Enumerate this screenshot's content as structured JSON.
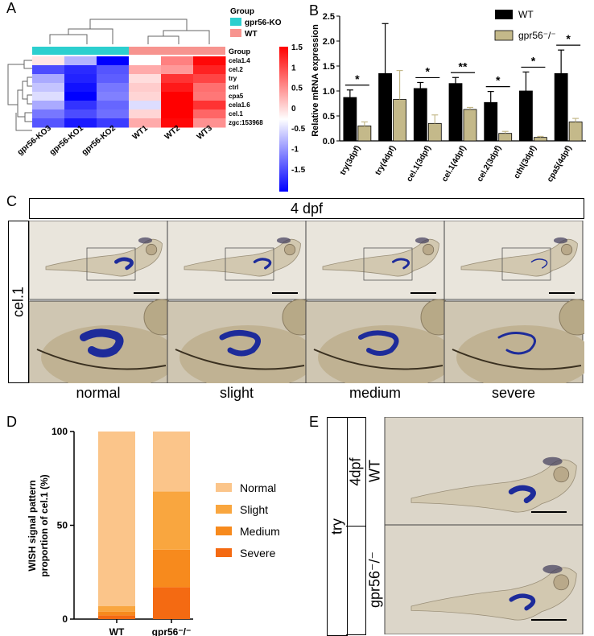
{
  "panels": {
    "A": "A",
    "B": "B",
    "C": "C",
    "D": "D",
    "E": "E"
  },
  "heatmap": {
    "legend_title_top": "Group",
    "legend_items": [
      {
        "label": "gpr56-KO",
        "color": "#2ccfcf"
      },
      {
        "label": "WT",
        "color": "#f7948f"
      }
    ],
    "group_label": "Group",
    "rows": [
      "cela1.4",
      "cel.2",
      "try",
      "ctrl",
      "cpa5",
      "cela1.6",
      "cel.1",
      "zgc:153968"
    ],
    "cols": [
      "gpr56-KO3",
      "gpr56-KO1",
      "gpr56-KO2",
      "WT1",
      "WT2",
      "WT3"
    ],
    "values": [
      [
        0.15,
        -0.45,
        -1.5,
        0.0,
        0.75,
        1.45
      ],
      [
        -1.05,
        -1.25,
        -1.0,
        0.5,
        0.6,
        1.3
      ],
      [
        -0.5,
        -1.3,
        -0.95,
        0.2,
        1.2,
        1.1
      ],
      [
        -0.35,
        -1.4,
        -0.8,
        0.3,
        1.35,
        0.85
      ],
      [
        -0.2,
        -1.55,
        -0.75,
        0.25,
        1.5,
        0.8
      ],
      [
        -0.5,
        -1.2,
        -0.9,
        -0.2,
        1.5,
        1.2
      ],
      [
        -0.8,
        -1.05,
        -0.85,
        0.25,
        1.5,
        0.9
      ],
      [
        -1.0,
        -1.35,
        -1.15,
        0.5,
        1.45,
        0.65
      ]
    ],
    "scale_ticks": [
      "1.5",
      "1",
      "0.5",
      "0",
      "-0.5",
      "-1",
      "-1.5"
    ]
  },
  "bar_chart_b": {
    "ylabel": "Relative mRNA expression",
    "yticks": [
      "0.0",
      "0.5",
      "1.0",
      "1.5",
      "2.0",
      "2.5"
    ],
    "legend": [
      {
        "label": "WT",
        "color": "#000000"
      },
      {
        "label": "gpr56⁻/⁻",
        "color": "#c4b98a"
      }
    ],
    "groups": [
      {
        "label": "try(3dpf)",
        "sig": "*"
      },
      {
        "label": "try(4dpf)",
        "sig": ""
      },
      {
        "label": "cel.1(3dpf)",
        "sig": "*"
      },
      {
        "label": "cel.1(4dpf)",
        "sig": "**"
      },
      {
        "label": "cel.2(3dpf)",
        "sig": "*"
      },
      {
        "label": "cthl(3dpf)",
        "sig": "*"
      },
      {
        "label": "cpa5(4dpf)",
        "sig": "*"
      }
    ]
  },
  "panel_c": {
    "header": "4 dpf",
    "gene": "cel.1",
    "categories": [
      "normal",
      "slight",
      "medium",
      "severe"
    ]
  },
  "bar_chart_d": {
    "ylabel_line1": "WISH signal pattern",
    "ylabel_line2": "proportion of cel.1 (%)",
    "yticks": [
      "0",
      "50",
      "100"
    ],
    "legend": [
      {
        "label": "Normal",
        "color": "#fbc58a"
      },
      {
        "label": "Slight",
        "color": "#f9a63f"
      },
      {
        "label": "Medium",
        "color": "#f78a1d"
      },
      {
        "label": "Severe",
        "color": "#f46a12"
      }
    ],
    "bars": [
      {
        "label": "WT"
      },
      {
        "label": "gpr56⁻/⁻"
      }
    ]
  },
  "panel_e": {
    "timepoint": "4dpf",
    "gene": "try",
    "rows": [
      "WT",
      "gpr56⁻/⁻"
    ]
  },
  "chart_data": [
    {
      "type": "heatmap",
      "rows": [
        "cela1.4",
        "cel.2",
        "try",
        "ctrl",
        "cpa5",
        "cela1.6",
        "cel.1",
        "zgc:153968"
      ],
      "columns": [
        "gpr56-KO3",
        "gpr56-KO1",
        "gpr56-KO2",
        "WT1",
        "WT2",
        "WT3"
      ],
      "values": [
        [
          0.15,
          -0.45,
          -1.5,
          0.0,
          0.75,
          1.45
        ],
        [
          -1.05,
          -1.25,
          -1.0,
          0.5,
          0.6,
          1.3
        ],
        [
          -0.5,
          -1.3,
          -0.95,
          0.2,
          1.2,
          1.1
        ],
        [
          -0.35,
          -1.4,
          -0.8,
          0.3,
          1.35,
          0.85
        ],
        [
          -0.2,
          -1.55,
          -0.75,
          0.25,
          1.5,
          0.8
        ],
        [
          -0.5,
          -1.2,
          -0.9,
          -0.2,
          1.5,
          1.2
        ],
        [
          -0.8,
          -1.05,
          -0.85,
          0.25,
          1.5,
          0.9
        ],
        [
          -1.0,
          -1.35,
          -1.15,
          0.5,
          1.45,
          0.65
        ]
      ],
      "color_range": [
        -1.5,
        1.5
      ]
    },
    {
      "type": "bar",
      "categories": [
        "try(3dpf)",
        "try(4dpf)",
        "cel.1(3dpf)",
        "cel.1(4dpf)",
        "cel.2(3dpf)",
        "cthl(3dpf)",
        "cpa5(4dpf)"
      ],
      "series": [
        {
          "name": "WT",
          "values": [
            0.87,
            1.35,
            1.05,
            1.15,
            0.77,
            1.0,
            1.35
          ],
          "errors": [
            0.15,
            1.0,
            0.12,
            0.12,
            0.22,
            0.38,
            0.47
          ]
        },
        {
          "name": "gpr56⁻/⁻",
          "values": [
            0.3,
            0.83,
            0.35,
            0.63,
            0.15,
            0.07,
            0.38
          ],
          "errors": [
            0.08,
            0.58,
            0.17,
            0.04,
            0.04,
            0.02,
            0.07
          ]
        }
      ],
      "ylabel": "Relative mRNA expression",
      "ylim": [
        0,
        2.5
      ]
    },
    {
      "type": "bar",
      "stacked": true,
      "categories": [
        "WT",
        "gpr56⁻/⁻"
      ],
      "series": [
        {
          "name": "Severe",
          "values": [
            2,
            17
          ]
        },
        {
          "name": "Medium",
          "values": [
            2,
            20
          ]
        },
        {
          "name": "Slight",
          "values": [
            3,
            31
          ]
        },
        {
          "name": "Normal",
          "values": [
            93,
            32
          ]
        }
      ],
      "ylabel": "WISH signal pattern proportion of cel.1 (%)",
      "ylim": [
        0,
        100
      ]
    }
  ]
}
